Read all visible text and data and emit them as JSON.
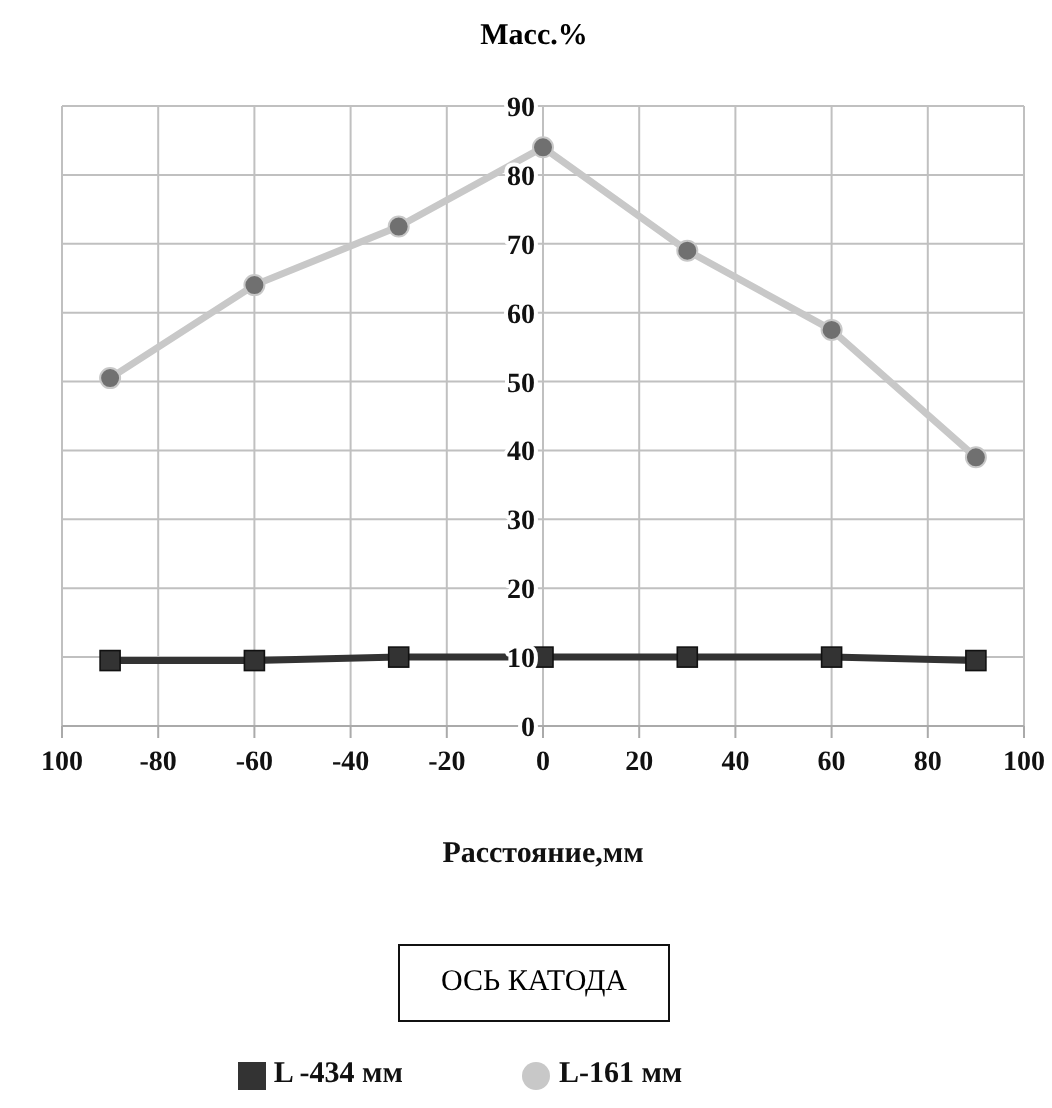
{
  "chart_data": {
    "type": "line",
    "title": "Масс.%",
    "xlabel": "Расстояние,мм",
    "annotations": [
      "ОСЬ КАТОДА"
    ],
    "x": [
      -90,
      -60,
      -30,
      0,
      30,
      60,
      90
    ],
    "series": [
      {
        "name": "L -434 мм",
        "color": "#333333",
        "marker": "square",
        "values": [
          9.5,
          9.5,
          10,
          10,
          10,
          10,
          9.5
        ]
      },
      {
        "name": "L-161 мм",
        "color": "#c8c8c8",
        "marker": "circle",
        "values": [
          50.5,
          64,
          72.5,
          84,
          69,
          57.5,
          39
        ]
      }
    ],
    "xlim": [
      -100,
      100
    ],
    "xticks": [
      {
        "value": -100,
        "label": "100"
      },
      -80,
      -60,
      -40,
      -20,
      0,
      20,
      40,
      60,
      80,
      100
    ],
    "ylim": [
      0,
      90
    ],
    "yticks": [
      0,
      10,
      20,
      30,
      40,
      50,
      60,
      70,
      80,
      90
    ],
    "grid": true,
    "legend": "bottom"
  }
}
